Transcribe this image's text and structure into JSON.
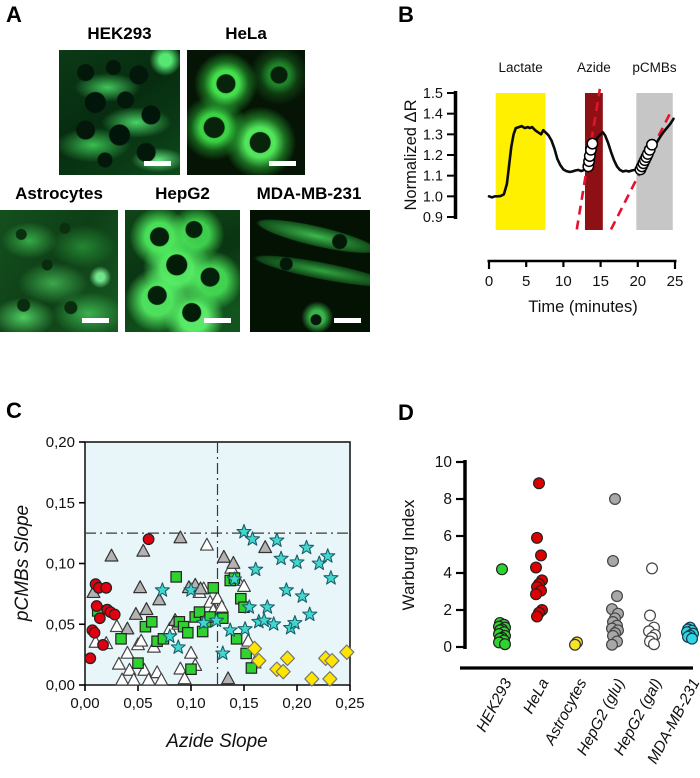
{
  "figure": {
    "panel_a": {
      "label": "A",
      "images": [
        {
          "name": "HEK293"
        },
        {
          "name": "HeLa"
        },
        {
          "name": "Astrocytes"
        },
        {
          "name": "HepG2"
        },
        {
          "name": "MDA-MB-231"
        }
      ]
    },
    "panel_b": {
      "label": "B"
    },
    "panel_c": {
      "label": "C"
    },
    "panel_d": {
      "label": "D"
    }
  },
  "chart_data": [
    {
      "panel": "B",
      "type": "line",
      "xlabel": "Time (minutes)",
      "ylabel": "Normalized ΔR",
      "xlim": [
        0,
        25
      ],
      "ylim": [
        0.9,
        1.5
      ],
      "xticks": [
        0,
        5,
        10,
        15,
        20,
        25
      ],
      "yticks": [
        0.9,
        1.0,
        1.1,
        1.2,
        1.3,
        1.4,
        1.5
      ],
      "bands": [
        {
          "label": "Lactate",
          "x0": 0.9,
          "x1": 7.6,
          "color": "#FFF000"
        },
        {
          "label": "Azide",
          "x0": 12.9,
          "x1": 15.3,
          "color": "#8E1014"
        },
        {
          "label": "pCMBs",
          "x0": 19.8,
          "x1": 24.7,
          "color": "#C6C6C6"
        }
      ],
      "trace": {
        "x": [
          0,
          0.4,
          0.8,
          1.2,
          1.6,
          2.0,
          2.4,
          2.7,
          3.0,
          3.3,
          3.6,
          4.0,
          4.4,
          4.8,
          5.2,
          5.5,
          5.8,
          6.2,
          6.6,
          7.0,
          7.3,
          7.6,
          8.0,
          8.4,
          8.8,
          9.2,
          9.6,
          10.0,
          10.4,
          10.8,
          11.2,
          11.6,
          12.0,
          12.4,
          12.8,
          13.1,
          13.4,
          13.7,
          14.0,
          14.3,
          14.6,
          15.0,
          15.3,
          15.6,
          16.0,
          16.4,
          16.8,
          17.2,
          17.6,
          18.0,
          18.4,
          18.8,
          19.2,
          19.6,
          20.0,
          20.4,
          20.8,
          21.2,
          21.6,
          22.0,
          22.4,
          22.8,
          23.2,
          23.6,
          24.0,
          24.4,
          24.8
        ],
        "y": [
          1.0,
          0.995,
          1.0,
          1.0,
          1.002,
          1.01,
          1.06,
          1.15,
          1.24,
          1.3,
          1.33,
          1.335,
          1.34,
          1.33,
          1.335,
          1.33,
          1.335,
          1.32,
          1.31,
          1.3,
          1.32,
          1.31,
          1.295,
          1.27,
          1.23,
          1.18,
          1.15,
          1.13,
          1.122,
          1.118,
          1.12,
          1.125,
          1.128,
          1.122,
          1.128,
          1.14,
          1.165,
          1.195,
          1.23,
          1.26,
          1.285,
          1.3,
          1.31,
          1.295,
          1.26,
          1.215,
          1.175,
          1.145,
          1.128,
          1.12,
          1.124,
          1.12,
          1.125,
          1.128,
          1.132,
          1.142,
          1.158,
          1.18,
          1.205,
          1.228,
          1.252,
          1.275,
          1.298,
          1.318,
          1.335,
          1.352,
          1.375
        ]
      },
      "fit_lines": [
        {
          "x": [
            11.8,
            14.9
          ],
          "y": [
            0.84,
            1.52
          ],
          "color": "#E8112D"
        },
        {
          "x": [
            16.4,
            24.6
          ],
          "y": [
            0.84,
            1.42
          ],
          "color": "#E8112D"
        }
      ],
      "fit_points": [
        [
          13.35,
          1.145
        ],
        [
          13.45,
          1.17
        ],
        [
          13.55,
          1.195
        ],
        [
          13.7,
          1.225
        ],
        [
          13.9,
          1.255
        ],
        [
          20.35,
          1.13
        ],
        [
          20.55,
          1.145
        ],
        [
          20.75,
          1.16
        ],
        [
          20.95,
          1.175
        ],
        [
          21.15,
          1.19
        ],
        [
          21.35,
          1.205
        ],
        [
          21.6,
          1.225
        ],
        [
          21.9,
          1.25
        ]
      ]
    },
    {
      "panel": "C",
      "type": "scatter",
      "xlabel": "Azide Slope",
      "ylabel": "pCMBs Slope",
      "xlim": [
        0,
        0.25
      ],
      "ylim": [
        0,
        0.2
      ],
      "xtick_vals": [
        0,
        0.05,
        0.1,
        0.15,
        0.2,
        0.25
      ],
      "xtick_labels": [
        "0,00",
        "0,05",
        "0,10",
        "0,15",
        "0,20",
        "0,25"
      ],
      "ytick_vals": [
        0,
        0.05,
        0.1,
        0.15,
        0.2
      ],
      "ytick_labels": [
        "0,00",
        "0,05",
        "0,10",
        "0,15",
        "0,20"
      ],
      "plot_bg": "#E8F6FA",
      "ref_line_x": 0.125,
      "ref_line_y": 0.125,
      "series": [
        {
          "name": "white-triangles",
          "marker": "triangle",
          "color": "#FFFFFF",
          "edge": "#444444",
          "points": [
            [
              0.01,
              0.035
            ],
            [
              0.02,
              0.034
            ],
            [
              0.03,
              0.048
            ],
            [
              0.032,
              0.017
            ],
            [
              0.035,
              0.004
            ],
            [
              0.04,
              0.026
            ],
            [
              0.042,
              0.012
            ],
            [
              0.046,
              0.004
            ],
            [
              0.05,
              0.033
            ],
            [
              0.053,
              0.036
            ],
            [
              0.056,
              0.012
            ],
            [
              0.06,
              0.004
            ],
            [
              0.065,
              0.031
            ],
            [
              0.068,
              0.01
            ],
            [
              0.072,
              0.004
            ],
            [
              0.08,
              0.046
            ],
            [
              0.088,
              0.05
            ],
            [
              0.09,
              0.013
            ],
            [
              0.094,
              0.005
            ],
            [
              0.1,
              0.026
            ],
            [
              0.104,
              0.016
            ],
            [
              0.108,
              0.076
            ],
            [
              0.112,
              0.079
            ],
            [
              0.115,
              0.115
            ],
            [
              0.118,
              0.068
            ],
            [
              0.121,
              0.061
            ],
            [
              0.125,
              0.071
            ],
            [
              0.129,
              0.064
            ],
            [
              0.138,
              0.096
            ],
            [
              0.144,
              0.086
            ],
            [
              0.15,
              0.081
            ],
            [
              0.154,
              0.036
            ],
            [
              0.16,
              0.018
            ]
          ]
        },
        {
          "name": "gray-triangles",
          "marker": "triangle",
          "color": "#B3B3B3",
          "edge": "#333333",
          "points": [
            [
              0.008,
              0.076
            ],
            [
              0.025,
              0.106
            ],
            [
              0.04,
              0.046
            ],
            [
              0.048,
              0.058
            ],
            [
              0.052,
              0.08
            ],
            [
              0.055,
              0.11
            ],
            [
              0.058,
              0.062
            ],
            [
              0.07,
              0.07
            ],
            [
              0.085,
              0.053
            ],
            [
              0.09,
              0.121
            ],
            [
              0.098,
              0.08
            ],
            [
              0.104,
              0.082
            ],
            [
              0.109,
              0.079
            ],
            [
              0.131,
              0.105
            ],
            [
              0.14,
              0.1
            ],
            [
              0.17,
              0.113
            ],
            [
              0.135,
              0.005
            ]
          ]
        },
        {
          "name": "green-squares",
          "marker": "square",
          "color": "#2FD32F",
          "edge": "#222222",
          "points": [
            [
              0.012,
              0.061
            ],
            [
              0.034,
              0.038
            ],
            [
              0.05,
              0.018
            ],
            [
              0.057,
              0.048
            ],
            [
              0.063,
              0.052
            ],
            [
              0.068,
              0.036
            ],
            [
              0.074,
              0.038
            ],
            [
              0.086,
              0.089
            ],
            [
              0.089,
              0.052
            ],
            [
              0.093,
              0.048
            ],
            [
              0.097,
              0.043
            ],
            [
              0.1,
              0.013
            ],
            [
              0.104,
              0.056
            ],
            [
              0.108,
              0.06
            ],
            [
              0.111,
              0.044
            ],
            [
              0.114,
              0.052
            ],
            [
              0.118,
              0.056
            ],
            [
              0.121,
              0.08
            ],
            [
              0.13,
              0.055
            ],
            [
              0.137,
              0.086
            ],
            [
              0.141,
              0.088
            ],
            [
              0.143,
              0.038
            ],
            [
              0.147,
              0.071
            ],
            [
              0.15,
              0.064
            ],
            [
              0.152,
              0.026
            ],
            [
              0.157,
              0.014
            ]
          ]
        },
        {
          "name": "red-circles",
          "marker": "circle",
          "color": "#E00010",
          "edge": "#222222",
          "points": [
            [
              0.005,
              0.022
            ],
            [
              0.007,
              0.045
            ],
            [
              0.009,
              0.043
            ],
            [
              0.01,
              0.083
            ],
            [
              0.013,
              0.08
            ],
            [
              0.011,
              0.065
            ],
            [
              0.014,
              0.055
            ],
            [
              0.017,
              0.033
            ],
            [
              0.02,
              0.08
            ],
            [
              0.021,
              0.062
            ],
            [
              0.024,
              0.06
            ],
            [
              0.028,
              0.058
            ],
            [
              0.06,
              0.12
            ]
          ]
        },
        {
          "name": "cyan-stars",
          "marker": "star",
          "color": "#40D7CE",
          "edge": "#1b5e68",
          "points": [
            [
              0.073,
              0.078
            ],
            [
              0.08,
              0.04
            ],
            [
              0.088,
              0.031
            ],
            [
              0.1,
              0.078
            ],
            [
              0.112,
              0.051
            ],
            [
              0.124,
              0.053
            ],
            [
              0.13,
              0.026
            ],
            [
              0.137,
              0.045
            ],
            [
              0.141,
              0.087
            ],
            [
              0.15,
              0.126
            ],
            [
              0.151,
              0.046
            ],
            [
              0.155,
              0.064
            ],
            [
              0.158,
              0.12
            ],
            [
              0.161,
              0.095
            ],
            [
              0.164,
              0.052
            ],
            [
              0.169,
              0.053
            ],
            [
              0.172,
              0.064
            ],
            [
              0.178,
              0.05
            ],
            [
              0.181,
              0.119
            ],
            [
              0.185,
              0.104
            ],
            [
              0.19,
              0.078
            ],
            [
              0.194,
              0.047
            ],
            [
              0.198,
              0.051
            ],
            [
              0.2,
              0.101
            ],
            [
              0.205,
              0.073
            ],
            [
              0.209,
              0.113
            ],
            [
              0.212,
              0.058
            ],
            [
              0.221,
              0.1
            ],
            [
              0.229,
              0.106
            ],
            [
              0.232,
              0.088
            ]
          ]
        },
        {
          "name": "yellow-diamonds",
          "marker": "diamond",
          "color": "#FFE500",
          "edge": "#777777",
          "points": [
            [
              0.16,
              0.03
            ],
            [
              0.164,
              0.02
            ],
            [
              0.181,
              0.013
            ],
            [
              0.187,
              0.011
            ],
            [
              0.191,
              0.022
            ],
            [
              0.214,
              0.005
            ],
            [
              0.227,
              0.022
            ],
            [
              0.233,
              0.02
            ],
            [
              0.231,
              0.005
            ],
            [
              0.247,
              0.027
            ]
          ]
        }
      ]
    },
    {
      "panel": "D",
      "type": "scatter",
      "ylabel": "Warburg Index",
      "ylim": [
        0,
        10
      ],
      "yticks": [
        0,
        2,
        4,
        6,
        8,
        10
      ],
      "categories": [
        "HEK293",
        "HeLa",
        "Astrocytes",
        "HepG2 (glu)",
        "HepG2 (gal)",
        "MDA-MB-231"
      ],
      "series": [
        {
          "name": "HEK293",
          "color": "#2FD32F",
          "edge": "#222222",
          "values": [
            4.2,
            1.3,
            1.2,
            1.1,
            1.05,
            0.95,
            0.9,
            0.8,
            0.7,
            0.6,
            0.5,
            0.45,
            0.35,
            0.25,
            0.15
          ]
        },
        {
          "name": "HeLa",
          "color": "#DD0000",
          "edge": "#222222",
          "values": [
            8.85,
            5.9,
            4.95,
            4.3,
            3.6,
            3.4,
            3.25,
            3.05,
            2.85,
            2.0,
            1.85,
            1.65
          ]
        },
        {
          "name": "Astrocytes",
          "color": "#F7E32A",
          "edge": "#333333",
          "values": [
            0.25,
            0.12
          ]
        },
        {
          "name": "HepG2 (glu)",
          "color": "#A8A8A8",
          "edge": "#444444",
          "values": [
            8.0,
            4.65,
            2.75,
            2.05,
            1.8,
            1.55,
            1.35,
            1.15,
            1.0,
            0.9,
            0.75,
            0.6,
            0.3,
            0.12
          ]
        },
        {
          "name": "HepG2 (gal)",
          "color": "#FFFFFF",
          "edge": "#444444",
          "values": [
            4.25,
            1.7,
            1.05,
            0.85,
            0.65,
            0.5,
            0.3,
            0.15
          ]
        },
        {
          "name": "MDA-MB-231",
          "color": "#30D7E2",
          "edge": "#123a4a",
          "values": [
            1.05,
            0.95,
            0.88,
            0.8,
            0.72,
            0.62,
            0.55,
            0.45
          ]
        }
      ]
    }
  ]
}
